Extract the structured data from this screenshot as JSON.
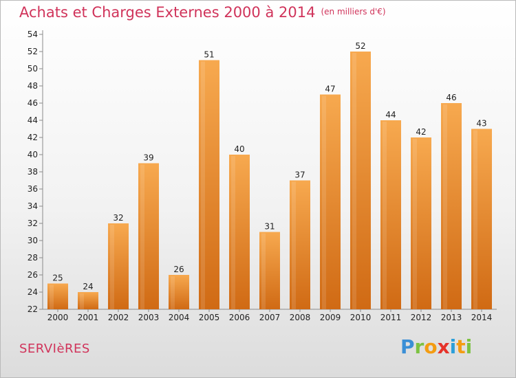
{
  "header": {
    "title": "Achats et Charges Externes 2000 à 2014",
    "subtitle": "(en milliers d'€)"
  },
  "footer": {
    "commune": "SERVIèRES",
    "logo_letters": [
      "P",
      "r",
      "o",
      "x",
      "i",
      "t",
      "i"
    ],
    "logo_colors": [
      "#3a8fd6",
      "#7cc242",
      "#f39c12",
      "#e6332a",
      "#2b9fd9",
      "#f39c12",
      "#7cc242"
    ]
  },
  "colors": {
    "accent": "#d0335a",
    "bar_top": "#f7a94f",
    "bar_bottom": "#d06a14"
  },
  "chart_data": {
    "type": "bar",
    "categories": [
      "2000",
      "2001",
      "2002",
      "2003",
      "2004",
      "2005",
      "2006",
      "2007",
      "2008",
      "2009",
      "2010",
      "2011",
      "2012",
      "2013",
      "2014"
    ],
    "values": [
      25,
      24,
      32,
      39,
      26,
      51,
      40,
      31,
      37,
      47,
      52,
      44,
      42,
      46,
      43
    ],
    "title": "Achats et Charges Externes 2000 à 2014",
    "subtitle": "(en milliers d'€)",
    "xlabel": "",
    "ylabel": "",
    "ylim": [
      22,
      54
    ],
    "yticks": [
      22,
      24,
      26,
      28,
      30,
      32,
      34,
      36,
      38,
      40,
      42,
      44,
      46,
      48,
      50,
      52,
      54
    ],
    "grid": false,
    "data_labels": true
  }
}
